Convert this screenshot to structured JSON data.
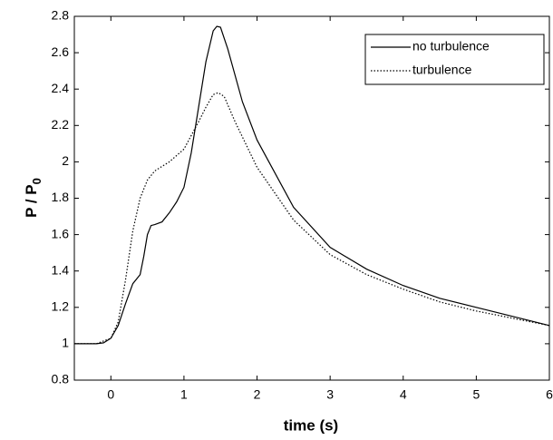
{
  "chart_data": {
    "type": "line",
    "xlabel": "time (s)",
    "ylabel": "P / P",
    "ylabel_subscript": "0",
    "xlim": [
      -0.5,
      6
    ],
    "ylim": [
      0.8,
      2.8
    ],
    "xticks": [
      0,
      1,
      2,
      3,
      4,
      5,
      6
    ],
    "yticks": [
      0.8,
      1,
      1.2,
      1.4,
      1.6,
      1.8,
      2,
      2.2,
      2.4,
      2.6,
      2.8
    ],
    "grid": false,
    "legend": "upper right",
    "series": [
      {
        "name": "no turbulence",
        "color": "#000000",
        "dash": "solid",
        "x": [
          -0.5,
          -0.2,
          -0.1,
          0,
          0.1,
          0.2,
          0.3,
          0.4,
          0.45,
          0.5,
          0.55,
          0.6,
          0.7,
          0.8,
          0.9,
          1.0,
          1.1,
          1.2,
          1.3,
          1.4,
          1.45,
          1.5,
          1.6,
          1.8,
          2.0,
          2.5,
          3,
          3.5,
          4,
          4.5,
          5,
          5.5,
          6
        ],
        "values": [
          1,
          1,
          1.005,
          1.03,
          1.1,
          1.22,
          1.33,
          1.38,
          1.48,
          1.6,
          1.65,
          1.655,
          1.67,
          1.72,
          1.78,
          1.86,
          2.05,
          2.3,
          2.55,
          2.72,
          2.745,
          2.74,
          2.62,
          2.33,
          2.12,
          1.75,
          1.53,
          1.41,
          1.32,
          1.25,
          1.2,
          1.15,
          1.1
        ]
      },
      {
        "name": "turbulence",
        "color": "#000000",
        "dash": "dotted",
        "x": [
          -0.5,
          -0.2,
          0,
          0.1,
          0.2,
          0.3,
          0.4,
          0.5,
          0.6,
          0.8,
          1.0,
          1.2,
          1.3,
          1.4,
          1.47,
          1.55,
          1.7,
          2.0,
          2.5,
          3,
          3.5,
          4,
          4.5,
          5,
          5.5,
          6
        ],
        "values": [
          1,
          1,
          1.03,
          1.12,
          1.35,
          1.62,
          1.8,
          1.9,
          1.95,
          2.0,
          2.07,
          2.22,
          2.3,
          2.37,
          2.38,
          2.36,
          2.22,
          1.97,
          1.68,
          1.49,
          1.38,
          1.3,
          1.23,
          1.18,
          1.14,
          1.1
        ]
      }
    ]
  }
}
